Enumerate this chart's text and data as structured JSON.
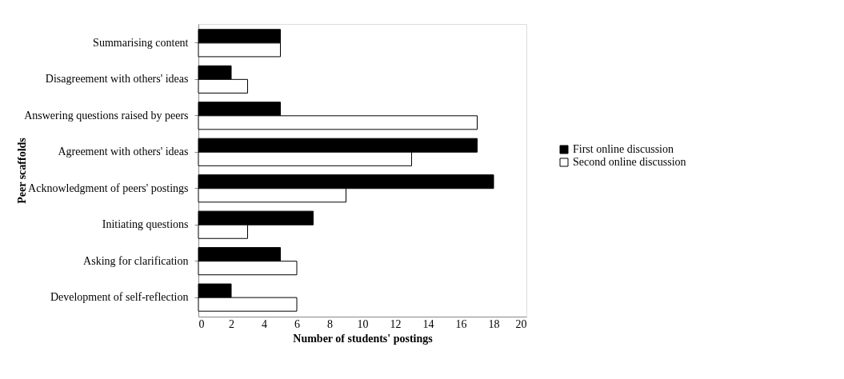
{
  "chart_data": {
    "type": "bar",
    "orientation": "horizontal",
    "xlabel": "Number of students' postings",
    "ylabel": "Peer scaffolds",
    "categories": [
      "Summarising content",
      "Disagreement with others' ideas",
      "Answering questions raised by peers",
      "Agreement with others' ideas",
      "Acknowledgment of peers' postings",
      "Initiating questions",
      "Asking for clarification",
      "Development of self-reflection"
    ],
    "series": [
      {
        "name": "First online discussion",
        "color": "#000000",
        "values": [
          5,
          2,
          5,
          17,
          18,
          7,
          5,
          2
        ]
      },
      {
        "name": "Second online discussion",
        "color": "#ffffff",
        "values": [
          5,
          3,
          17,
          13,
          9,
          3,
          6,
          6
        ]
      }
    ],
    "xlim": [
      0,
      20
    ],
    "xticks": [
      0,
      2,
      4,
      6,
      8,
      10,
      12,
      14,
      16,
      18,
      20
    ],
    "grid": false,
    "legend": "right"
  }
}
